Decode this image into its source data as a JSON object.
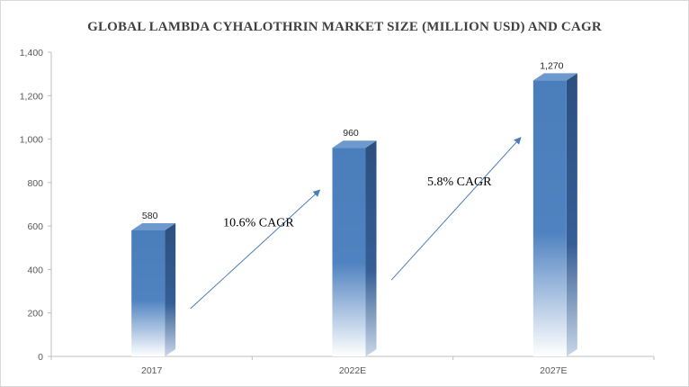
{
  "chart_data": {
    "type": "bar",
    "title": "GLOBAL LAMBDA CYHALOTHRIN MARKET SIZE (MILLION USD) AND CAGR",
    "categories": [
      "2017",
      "2022E",
      "2027E"
    ],
    "values": [
      580,
      960,
      1270
    ],
    "value_labels": [
      "580",
      "960",
      "1,270"
    ],
    "ylim": [
      0,
      1400
    ],
    "yticks": [
      0,
      200,
      400,
      600,
      800,
      1000,
      1200,
      1400
    ],
    "ytick_labels": [
      "0",
      "200",
      "400",
      "600",
      "800",
      "1,000",
      "1,200",
      "1,400"
    ],
    "xlabel": "",
    "ylabel": "",
    "grid": false,
    "bar_color": "#4a7ebb",
    "annotations": [
      {
        "text": "10.6% CAGR",
        "from": "2017",
        "to": "2022E"
      },
      {
        "text": "5.8% CAGR",
        "from": "2022E",
        "to": "2027E"
      }
    ]
  }
}
